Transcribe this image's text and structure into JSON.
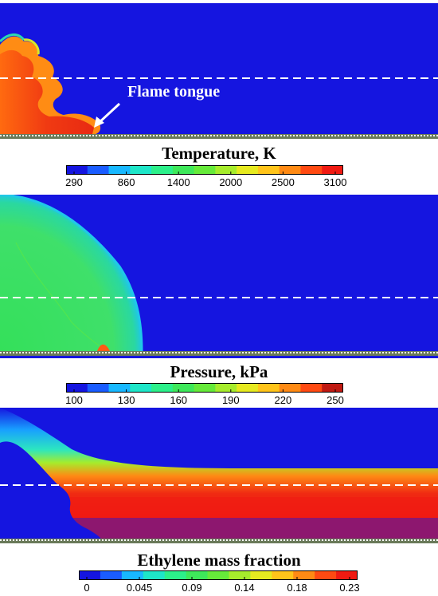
{
  "panels": [
    {
      "field": "Temperature",
      "annotation": "Flame tongue",
      "colorbar": {
        "title": "Temperature, K",
        "ticks": [
          "290",
          "860",
          "1400",
          "2000",
          "2500",
          "3100"
        ],
        "colors": [
          "#1515e0",
          "#1a5cff",
          "#18b8ff",
          "#1ee6c8",
          "#2cf08a",
          "#3ee85a",
          "#66ea3a",
          "#a6ec2c",
          "#e6ea20",
          "#ffc41a",
          "#ff8a14",
          "#ff4a12",
          "#f01a12"
        ]
      }
    },
    {
      "field": "Pressure",
      "colorbar": {
        "title": "Pressure, kPa",
        "ticks": [
          "100",
          "130",
          "160",
          "190",
          "220",
          "250"
        ],
        "colors": [
          "#1515e0",
          "#1a5cff",
          "#18b8ff",
          "#1ee6c8",
          "#2cf08a",
          "#3ee85a",
          "#66ea3a",
          "#a6ec2c",
          "#e6ea20",
          "#ffc41a",
          "#ff8a14",
          "#ff4a12",
          "#c01a12"
        ]
      }
    },
    {
      "field": "Ethylene mass fraction",
      "colorbar": {
        "title": "Ethylene mass fraction",
        "ticks": [
          "0",
          "0.045",
          "0.09",
          "0.14",
          "0.18",
          "0.23"
        ],
        "colors": [
          "#1515e0",
          "#1a5cff",
          "#18b8ff",
          "#1ee6c8",
          "#2cf08a",
          "#3ee85a",
          "#66ea3a",
          "#a6ec2c",
          "#e6ea20",
          "#ffc41a",
          "#ff8a14",
          "#ff4a12",
          "#f01a12"
        ]
      }
    }
  ],
  "palette": {
    "background_blue": "#1515e0",
    "flame_red": "#f03a12",
    "flame_orange": "#ff7a14",
    "pressure_green": "#3fe06a",
    "dash_line": "#ffffff"
  }
}
